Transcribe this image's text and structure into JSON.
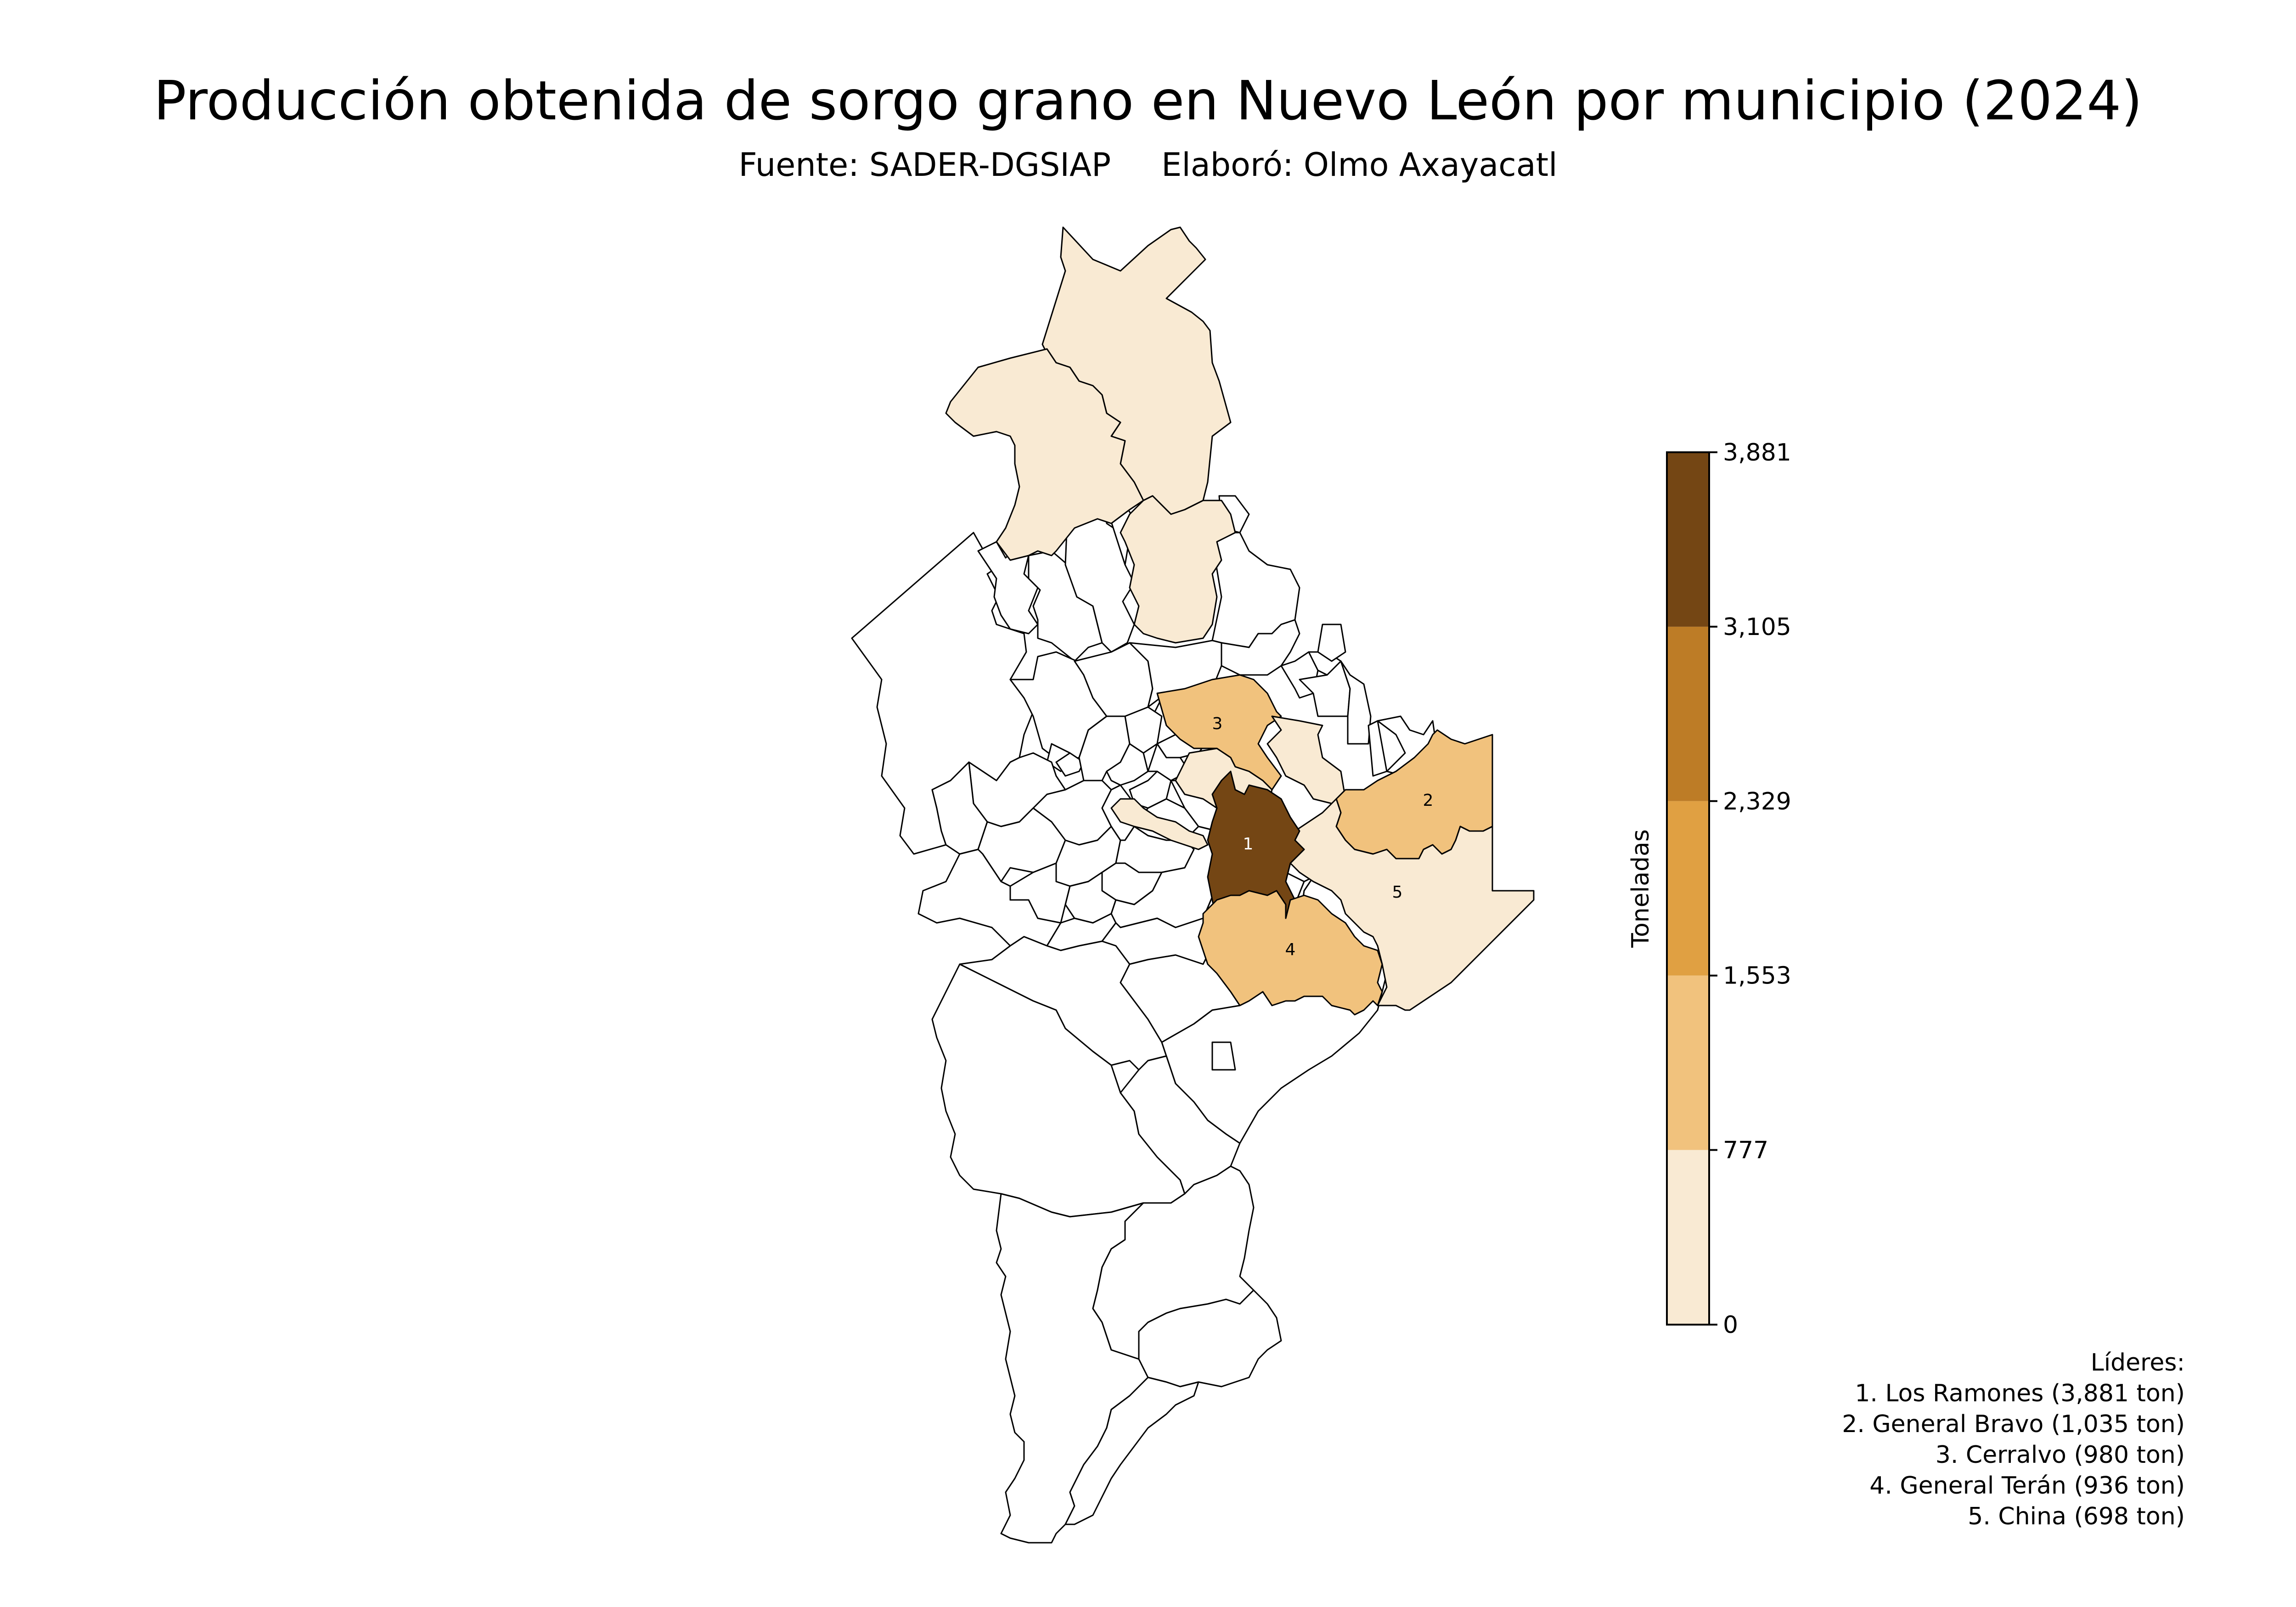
{
  "title": "Producción obtenida de sorgo grano en Nuevo León por municipio (2024)",
  "subtitle": {
    "source": "Fuente: SADER-DGSIAP",
    "author": "Elaboró: Olmo Axayacatl"
  },
  "colorbar": {
    "label": "Toneladas",
    "ticks": [
      "0",
      "777",
      "1,553",
      "2,329",
      "3,105",
      "3,881"
    ],
    "bins": [
      {
        "from": 0,
        "to": 777,
        "color": "#f9ead3"
      },
      {
        "from": 777,
        "to": 1553,
        "color": "#f1c27d"
      },
      {
        "from": 1553,
        "to": 2329,
        "color": "#e0a042"
      },
      {
        "from": 2329,
        "to": 3105,
        "color": "#bd7c26"
      },
      {
        "from": 3105,
        "to": 3881,
        "color": "#744614"
      }
    ]
  },
  "map": {
    "no_data_color": "#ffffff",
    "border_color": "#000000",
    "labels": [
      "1",
      "2",
      "3",
      "4",
      "5"
    ]
  },
  "leaders": {
    "heading": "Líderes:",
    "items": [
      "1. Los Ramones (3,881 ton)",
      "2. General Bravo (1,035 ton)",
      "3. Cerralvo (980 ton)",
      "4. General Terán (936 ton)",
      "5. China (698 ton)"
    ]
  }
}
